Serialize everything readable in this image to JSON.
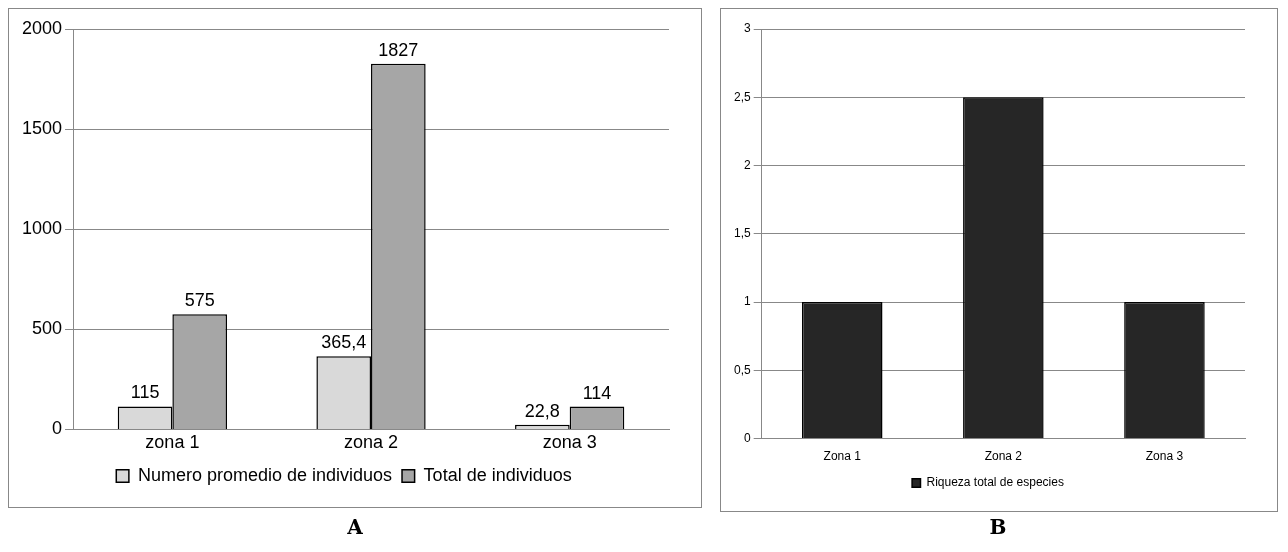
{
  "chart_data": [
    {
      "type": "bar",
      "categories": [
        "zona 1",
        "zona 2",
        "zona 3"
      ],
      "series": [
        {
          "name": "Numero promedio de individuos",
          "color": "#d9d9d9",
          "values": [
            115,
            365.4,
            22.8
          ],
          "value_labels": [
            "115",
            "365,4",
            "22,8"
          ]
        },
        {
          "name": "Total de individuos",
          "color": "#a6a6a6",
          "values": [
            575,
            1827,
            114
          ],
          "value_labels": [
            "575",
            "1827",
            "114"
          ]
        }
      ],
      "ylim": [
        0,
        2000
      ],
      "yticks": [
        0,
        500,
        1000,
        1500,
        2000
      ],
      "grid": "y",
      "legend": "bottom",
      "annotations": [
        "A"
      ]
    },
    {
      "type": "bar",
      "categories": [
        "Zona 1",
        "Zona 2",
        "Zona 3"
      ],
      "series": [
        {
          "name": "Riqueza total de especies",
          "color": "#262626",
          "values": [
            1,
            2.5,
            1
          ]
        }
      ],
      "ylim": [
        0,
        3
      ],
      "yticks": [
        0,
        {
          "value": 0.5,
          "label": "0,5"
        },
        1,
        {
          "value": 1.5,
          "label": "1,5"
        },
        2,
        {
          "value": 2.5,
          "label": "2,5"
        },
        3
      ],
      "grid": "y",
      "legend": "bottom",
      "annotations": [
        "B"
      ]
    }
  ]
}
